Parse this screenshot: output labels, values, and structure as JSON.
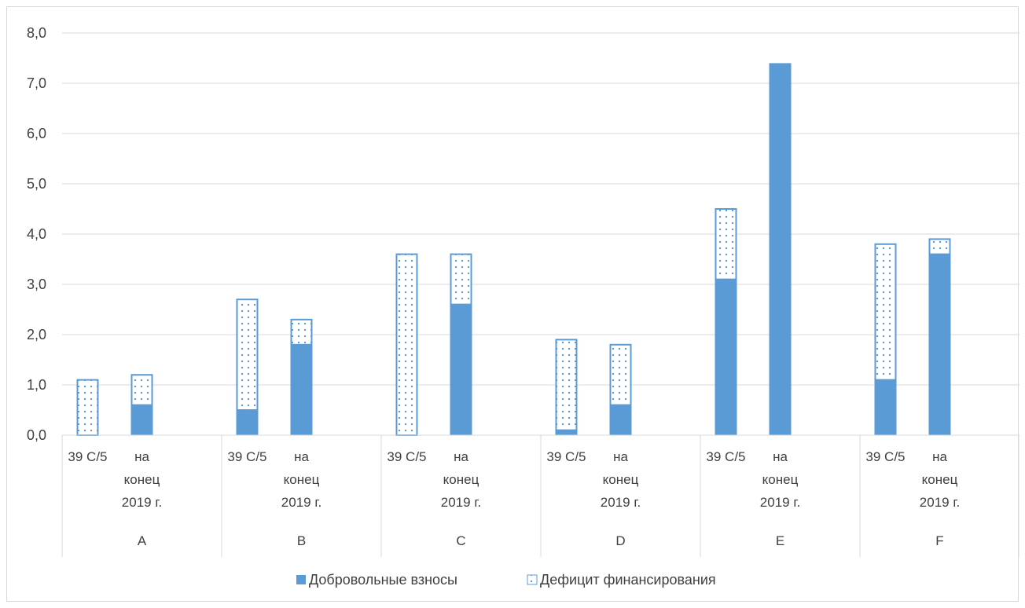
{
  "chart_data": {
    "type": "bar",
    "stacked": true,
    "groups": [
      "A",
      "B",
      "C",
      "D",
      "E",
      "F"
    ],
    "subcategories": [
      "39 C/5",
      "на конец 2019 г."
    ],
    "subcategory_lines": [
      [
        "39 C/5"
      ],
      [
        "на",
        "конец",
        "2019 г."
      ]
    ],
    "series": [
      {
        "name": "Добровольные взносы",
        "pattern": "solid",
        "color": "#5B9BD5",
        "values": [
          [
            0.0,
            0.6
          ],
          [
            0.5,
            1.8
          ],
          [
            0.0,
            2.6
          ],
          [
            0.1,
            0.6
          ],
          [
            3.1,
            7.4
          ],
          [
            1.1,
            3.6
          ]
        ]
      },
      {
        "name": "Дефицит финансирования",
        "pattern": "dotted",
        "color": "#5B9BD5",
        "values": [
          [
            1.1,
            0.6
          ],
          [
            2.2,
            0.5
          ],
          [
            3.6,
            1.0
          ],
          [
            1.8,
            1.2
          ],
          [
            1.4,
            0.0
          ],
          [
            2.7,
            0.3
          ]
        ]
      }
    ],
    "yticks": [
      "0,0",
      "1,0",
      "2,0",
      "3,0",
      "4,0",
      "5,0",
      "6,0",
      "7,0",
      "8,0"
    ],
    "ylim": [
      0,
      8
    ],
    "grid": true,
    "legend_position": "bottom"
  }
}
